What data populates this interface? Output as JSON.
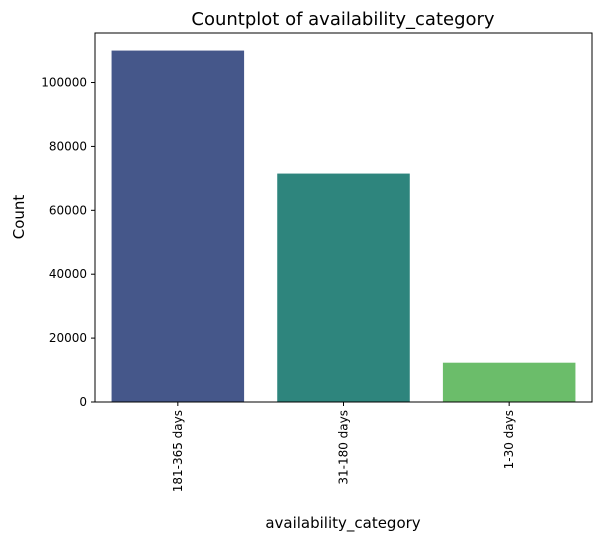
{
  "chart_data": {
    "type": "bar",
    "title": "Countplot of availability_category",
    "xlabel": "availability_category",
    "ylabel": "Count",
    "categories": [
      "181-365 days",
      "31-180 days",
      "1-30 days"
    ],
    "values": [
      110000,
      71500,
      12300
    ],
    "colors": [
      "#45578a",
      "#2e857d",
      "#6bbd6a"
    ],
    "ylim": [
      0,
      115500
    ],
    "yticks": [
      0,
      20000,
      40000,
      60000,
      80000,
      100000
    ],
    "ytick_labels": [
      "0",
      "20000",
      "40000",
      "60000",
      "80000",
      "100000"
    ],
    "grid": false,
    "legend": "none"
  }
}
